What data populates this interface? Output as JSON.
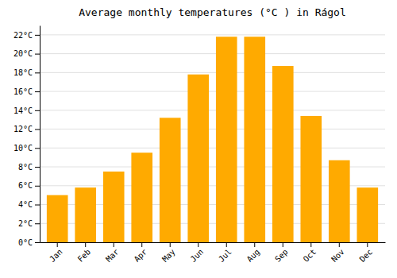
{
  "chart_data": {
    "type": "bar",
    "title": "Average monthly temperatures (°C ) in Rágol",
    "categories": [
      "Jan",
      "Feb",
      "Mar",
      "Apr",
      "May",
      "Jun",
      "Jul",
      "Aug",
      "Sep",
      "Oct",
      "Nov",
      "Dec"
    ],
    "values": [
      5.0,
      5.8,
      7.5,
      9.5,
      13.2,
      17.8,
      21.8,
      21.8,
      18.7,
      13.4,
      8.7,
      5.8
    ],
    "color": "#FFAA00",
    "ylim": [
      0,
      23
    ],
    "yticks": [
      {
        "value": 0,
        "label": "0°C"
      },
      {
        "value": 2,
        "label": "2°C"
      },
      {
        "value": 4,
        "label": "4°C"
      },
      {
        "value": 6,
        "label": "6°C"
      },
      {
        "value": 8,
        "label": "8°C"
      },
      {
        "value": 10,
        "label": "10°C"
      },
      {
        "value": 12,
        "label": "12°C"
      },
      {
        "value": 14,
        "label": "14°C"
      },
      {
        "value": 16,
        "label": "16°C"
      },
      {
        "value": 18,
        "label": "18°C"
      },
      {
        "value": 20,
        "label": "20°C"
      },
      {
        "value": 22,
        "label": "22°C"
      }
    ],
    "grid": true
  }
}
